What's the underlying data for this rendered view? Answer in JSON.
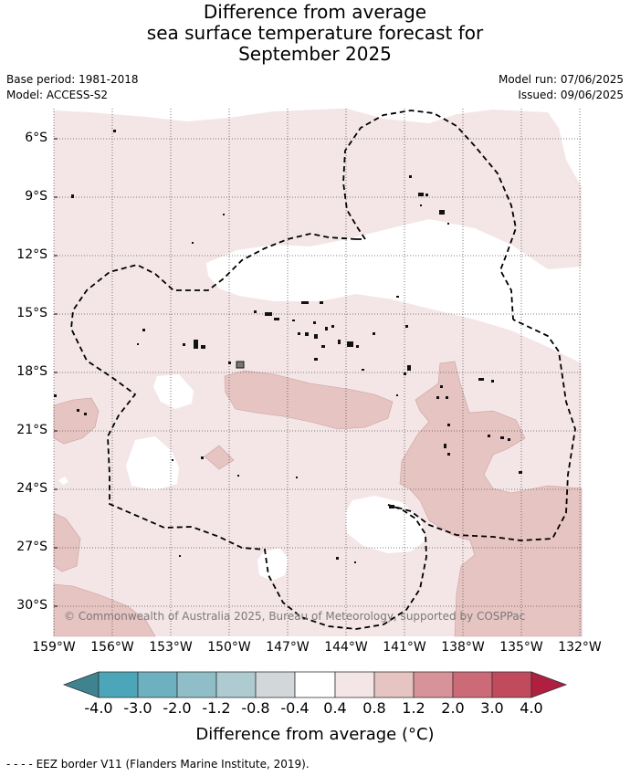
{
  "title": {
    "line1": "Difference from average",
    "line2": "sea surface temperature forecast for",
    "line3": "September 2025"
  },
  "meta": {
    "base_period": "Base period: 1981-2018",
    "model": "Model: ACCESS-S2",
    "model_run": "Model run: 07/06/2025",
    "issued": "Issued: 09/06/2025"
  },
  "map": {
    "lat_labels": [
      "6°S",
      "9°S",
      "12°S",
      "15°S",
      "18°S",
      "21°S",
      "24°S",
      "27°S",
      "30°S"
    ],
    "lon_labels": [
      "159°W",
      "156°W",
      "153°W",
      "150°W",
      "147°W",
      "144°W",
      "141°W",
      "138°W",
      "135°W",
      "132°W"
    ],
    "copyright": "© Commonwealth of Australia 2025, Bureau of Meteorology, supported by COSPPac",
    "colors": {
      "near_avg": "#ffffff",
      "warm_04_08": "#f4e6e6",
      "warm_08_12": "#e6c4c1",
      "land": "#111111",
      "eez_border": "#000000"
    }
  },
  "colorbar": {
    "labels": [
      "-4.0",
      "-3.0",
      "-2.0",
      "-1.2",
      "-0.8",
      "-0.4",
      "0.4",
      "0.8",
      "1.2",
      "2.0",
      "3.0",
      "4.0"
    ],
    "colors": [
      "#3f8390",
      "#4aa6b8",
      "#6db1c0",
      "#8fbec8",
      "#adcbd0",
      "#d2d8da",
      "#ffffff",
      "#f4e6e6",
      "#e6c4c1",
      "#d8939a",
      "#cd6a78",
      "#c24a5d",
      "#b01f3f"
    ],
    "title": "Difference from average (°C)"
  },
  "footnote": "- -  - - EEZ border V11 (Flanders Marine Institute, 2019)."
}
